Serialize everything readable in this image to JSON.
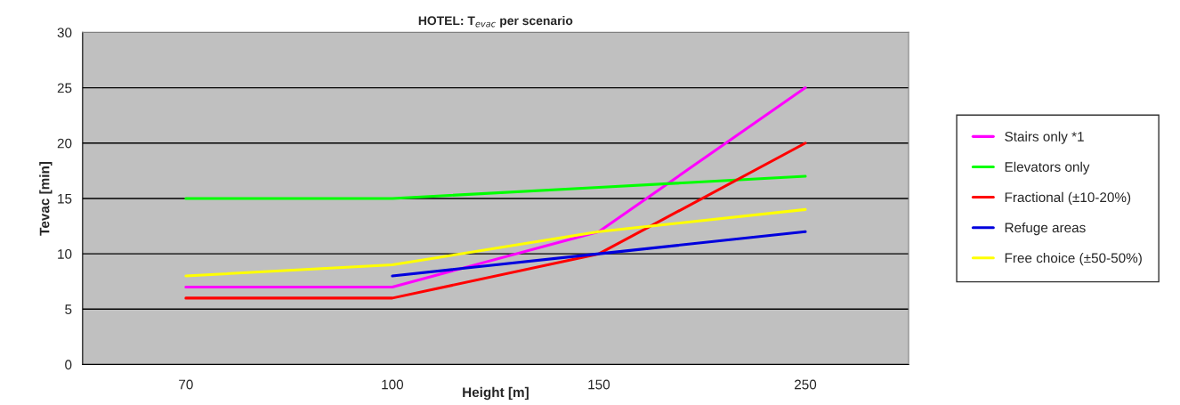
{
  "chart_data": {
    "type": "line",
    "title": "HOTEL: T$_{evac}$ per scenario",
    "xlabel": "Height [m]",
    "ylabel": "Tevac [min]",
    "categories": [
      "70",
      "100",
      "150",
      "250"
    ],
    "series": [
      {
        "name": "Stairs only *1",
        "color": "#ff00ff",
        "values": [
          7,
          7,
          12,
          25
        ]
      },
      {
        "name": "Elevators only",
        "color": "#00ff00",
        "values": [
          15,
          15,
          16,
          17
        ]
      },
      {
        "name": "Fractional (±10-20%)",
        "color": "#ff0000",
        "values": [
          6,
          6,
          10,
          20
        ]
      },
      {
        "name": "Refuge areas",
        "color": "#0000dd",
        "values": [
          null,
          8,
          10,
          12
        ]
      },
      {
        "name": "Free choice (±50-50%)",
        "color": "#ffff00",
        "values": [
          8,
          9,
          12,
          14
        ]
      }
    ],
    "ylim": [
      0,
      30
    ],
    "yticks": [
      0,
      5,
      10,
      15,
      20,
      25,
      30
    ],
    "grid": "y",
    "legend": "right",
    "marker": "none",
    "line_style": "solid"
  }
}
